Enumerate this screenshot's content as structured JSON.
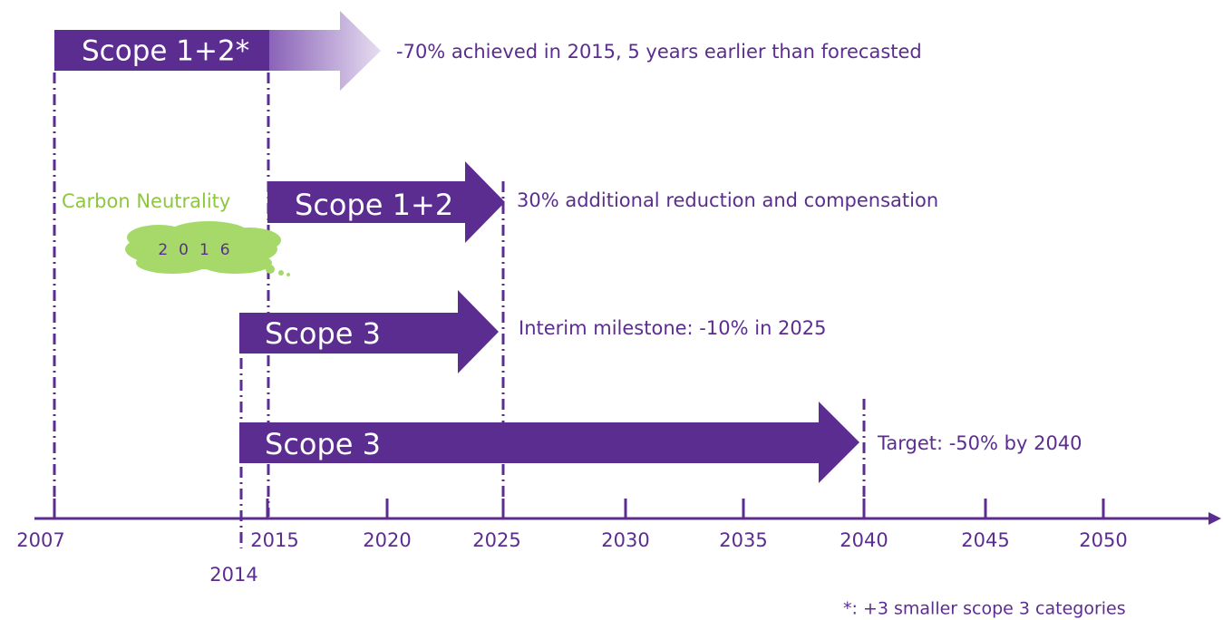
{
  "arrows": [
    {
      "label": "Scope 1+2*",
      "note": "-70% achieved in 2015, 5 years earlier than forecasted"
    },
    {
      "label": "Scope 1+2",
      "note": "30% additional reduction and compensation"
    },
    {
      "label": "Scope 3",
      "note": "Interim milestone: -10% in 2025"
    },
    {
      "label": "Scope 3",
      "note": "Target: -50% by 2040"
    }
  ],
  "cloud": {
    "label": "Carbon Neutrality",
    "year": "2016"
  },
  "axis": {
    "ticks": [
      "2007",
      "2015",
      "2020",
      "2025",
      "2030",
      "2035",
      "2040",
      "2045",
      "2050"
    ],
    "extra_tick": "2014"
  },
  "footnote": "*: +3 smaller scope 3 categories"
}
